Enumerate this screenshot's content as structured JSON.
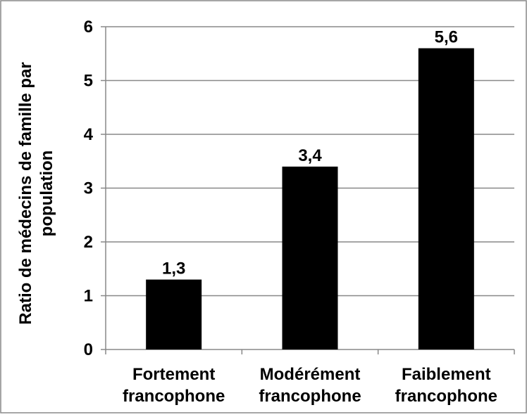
{
  "chart_data": {
    "type": "bar",
    "title": "",
    "xlabel": "",
    "ylabel": "Ratio de médecins de famille par population",
    "ylabel_lines": [
      "Ratio de médecins de famille par",
      "population"
    ],
    "categories": [
      "Fortement francophone",
      "Modérément francophone",
      "Faiblement francophone"
    ],
    "category_lines": [
      [
        "Fortement",
        "francophone"
      ],
      [
        "Modérément",
        "francophone"
      ],
      [
        "Faiblement",
        "francophone"
      ]
    ],
    "values": [
      1.3,
      3.4,
      5.6
    ],
    "data_labels": [
      "1,3",
      "3,4",
      "5,6"
    ],
    "ylim": [
      0,
      6
    ],
    "yticks": [
      0,
      1,
      2,
      3,
      4,
      5,
      6
    ],
    "ytick_labels": [
      "0",
      "1",
      "2",
      "3",
      "4",
      "5",
      "6"
    ],
    "grid": true,
    "legend": "none",
    "colors": {
      "bar": "#000000",
      "grid": "#888888",
      "axis": "#888888",
      "frame": "#888888",
      "text": "#000000"
    }
  }
}
